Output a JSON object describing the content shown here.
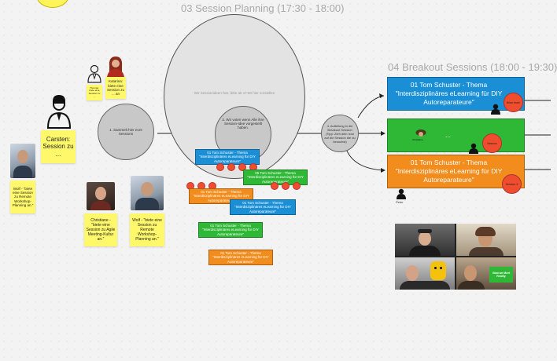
{
  "titles": {
    "session_planning": "03 Session Planning (17:30 - 18:00)",
    "breakout_sessions": "04 Breakout Sessions  (18:00 - 19:30)"
  },
  "big_circle": {
    "text": "Wir Sessionideen hier, bitte ab 17:50 hier vorstellen"
  },
  "flow_circles": {
    "sammelt": "1. Sammelt hier eure Sessions",
    "voten": "2. Wir voten wenn Alle ihre Session-Idee vorgestellt haben.",
    "aufteilung": "4. Aufteilung in die Breakout Session (Tipp: Zieh dein Icon auf die Session die du besuchst)"
  },
  "stickies": {
    "katarina": "Katarina: biete eine Session zu ... an",
    "thomas": "Thomas: biete eine Session zu ...",
    "carsten": "Carsten: Session zu ...",
    "wolf_left": "Wolf - \"biete eine Session zu Remote Workshop-Planning an.\"",
    "christiane": "Christiane - \"biete eine Session zu Agile Meeting-Kultur an.\"",
    "wolf_mid": "Wolf - \"biete eine Session zu Remote Workshop-Planning an.\""
  },
  "cards": {
    "c1": "01 Tom Schuster - Thema \"Interdisziplinäres eLearning für DIY Autoreparateure\"",
    "c2": "05 Tom Schuster - Thema \"Interdisziplinäres eLearning für DIY Autoreparateure\"",
    "c3": "01 Tom Schuster - Thema \"Interdisziplinäres eLearning für DIY Autoreparateure\"",
    "c4": "01 Tom Schuster - Thema \"Interdisziplinäres eLearning für DIY Autoreparateure\"",
    "c5": "01 Tom Schuster - Thema \"Interdisziplinäres eLearning für DIY Autoreparateure\"",
    "c6": "01 Tom Schuster - Thema \"Interdisziplinäres eLearning für DIY Autoreparateure\""
  },
  "breakouts": {
    "row1": "01 Tom Schuster - Thema \"Interdisziplinäres eLearning für DIY Autoreparateure\"",
    "row2": "...",
    "row3": "01 Tom Schuster - Thema \"Interdisziplinäres eLearning für DIY Autoreparateure\"",
    "row2_avatar_label": "Christiane",
    "badge1": "Brian team",
    "badge2": "Session",
    "badge3": "Session 3",
    "peter": "Peter"
  },
  "video": {
    "sign_text": "Glad we Meet Reality"
  },
  "colors": {
    "blue": "#1a8fd6",
    "green": "#2fb836",
    "orange": "#f28c1c",
    "sticky": "#fff86b",
    "dot": "#f04d2e"
  }
}
